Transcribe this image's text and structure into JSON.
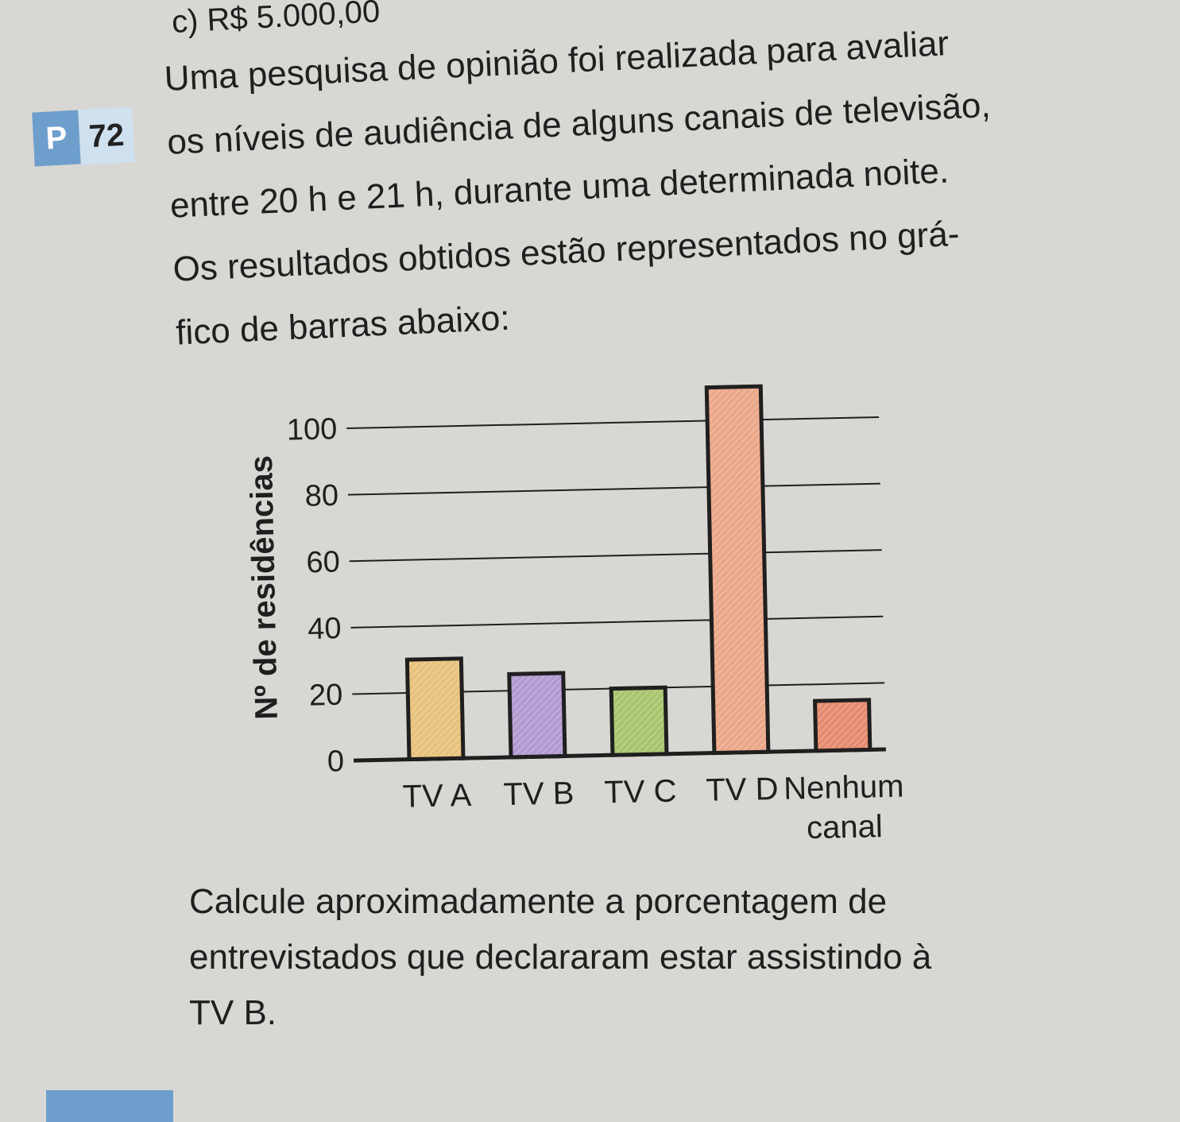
{
  "previous_option": "c) R$ 5.000,00",
  "question": {
    "badge_letter": "P",
    "number": "72",
    "lines": [
      "Uma pesquisa de opinião foi realizada para avaliar",
      "os níveis de audiência de alguns canais de televisão,",
      "entre 20 h e 21 h, durante uma determinada noite.",
      "Os resultados obtidos estão representados no grá-",
      "fico de barras abaixo:"
    ]
  },
  "chart_data": {
    "type": "bar",
    "title": "",
    "xlabel": "",
    "ylabel": "Nº de residências",
    "categories": [
      "TV A",
      "TV B",
      "TV C",
      "TV D",
      "Nenhum canal"
    ],
    "values": [
      30,
      25,
      20,
      110,
      15
    ],
    "yticks": [
      0,
      20,
      40,
      60,
      80,
      100
    ],
    "ylim": [
      0,
      110
    ],
    "grid": true,
    "legend": "none",
    "bar_colors": [
      "#e8c27c",
      "#b39ad0",
      "#a8c56e",
      "#eba789",
      "#e58b6f"
    ]
  },
  "footer": {
    "lines": [
      "Calcule aproximadamente a porcentagem de",
      "entrevistados que declararam estar assistindo à",
      "TV B."
    ]
  }
}
